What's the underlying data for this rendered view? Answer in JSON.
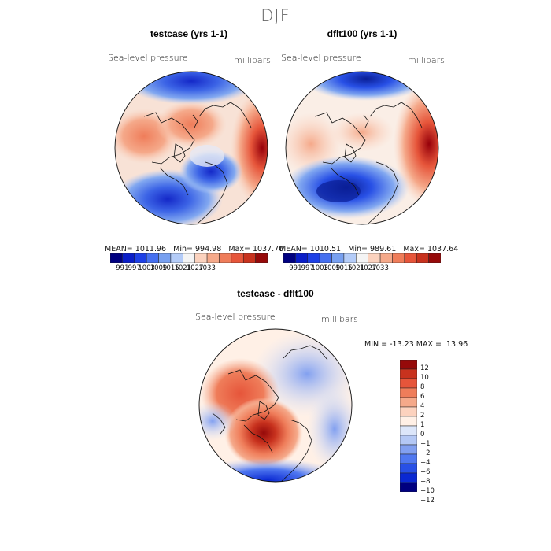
{
  "season": "DJF",
  "colors": {
    "seq13": [
      "#000080",
      "#0a1ec8",
      "#1e40e6",
      "#4670f0",
      "#78a0f0",
      "#b4ccf8",
      "#f4f4f4",
      "#fbd2be",
      "#f5a98a",
      "#ef7d5a",
      "#e6553a",
      "#c8321e",
      "#960a0a"
    ],
    "div14": [
      "#000080",
      "#0a28d2",
      "#2850e6",
      "#5078f0",
      "#82a0f0",
      "#b4c8f5",
      "#dce6fa",
      "#fff0e6",
      "#fcd2be",
      "#f5a98a",
      "#ef7d5a",
      "#e6553a",
      "#c8321e",
      "#960a0a"
    ]
  },
  "chart_data": [
    {
      "type": "map",
      "id": "top-left",
      "title": "testcase (yrs 1-1)",
      "variable": "Sea-level pressure",
      "units": "millibars",
      "stats": {
        "mean": "1011.96",
        "min": "994.98",
        "max": "1037.70"
      },
      "colorbar_ticks": [
        "991",
        "997",
        "1003",
        "1009",
        "1015",
        "1021",
        "1027",
        "1033"
      ]
    },
    {
      "type": "map",
      "id": "top-right",
      "title": "dflt100 (yrs 1-1)",
      "variable": "Sea-level pressure",
      "units": "millibars",
      "stats": {
        "mean": "1010.51",
        "min": "989.61",
        "max": "1037.64"
      },
      "colorbar_ticks": [
        "991",
        "997",
        "1003",
        "1009",
        "1015",
        "1021",
        "1027",
        "1033"
      ]
    },
    {
      "type": "map",
      "id": "difference",
      "title": "testcase - dflt100",
      "variable": "Sea-level pressure",
      "units": "millibars",
      "stats": {
        "min": "-13.23",
        "max": "13.96"
      },
      "colorbar_ticks": [
        "12",
        "10",
        "8",
        "6",
        "4",
        "2",
        "1",
        "0",
        "−1",
        "−2",
        "−4",
        "−6",
        "−8",
        "−10",
        "−12"
      ]
    }
  ],
  "labels": {
    "mean_prefix": "MEAN=",
    "min_prefix": "Min=",
    "max_prefix": "Max=",
    "diff_min_prefix": "MIN =",
    "diff_max_prefix": "MAX ="
  }
}
